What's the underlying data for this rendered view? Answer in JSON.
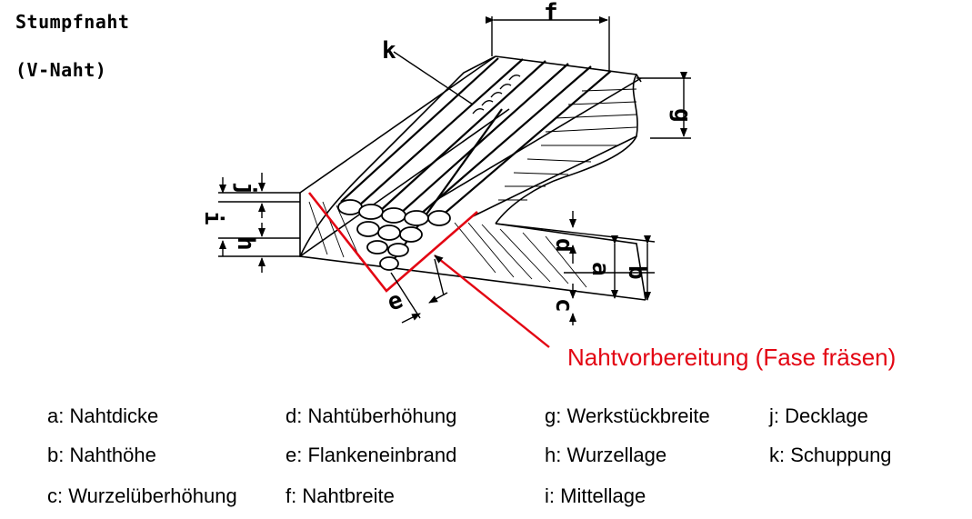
{
  "title": "Stumpfnaht",
  "subtitle": "(V-Naht)",
  "callout": "Nahtvorbereitung (Fase fräsen)",
  "colors": {
    "callout": "#e30613",
    "line": "#000000"
  },
  "dimension_labels": {
    "a": "a",
    "b": "b",
    "c": "c",
    "d": "d",
    "e": "e",
    "f": "f",
    "g": "g",
    "h": "h",
    "i": "i",
    "j": "j",
    "k": "k"
  },
  "legend": [
    [
      "a: Nahtdicke",
      "b: Nahthöhe",
      "c: Wurzelüberhöhung"
    ],
    [
      "d: Nahtüberhöhung",
      "e: Flankeneinbrand",
      "f: Nahtbreite"
    ],
    [
      "g: Werkstückbreite",
      "h: Wurzellage",
      "i: Mittellage"
    ],
    [
      "j: Decklage",
      "k: Schuppung"
    ]
  ]
}
